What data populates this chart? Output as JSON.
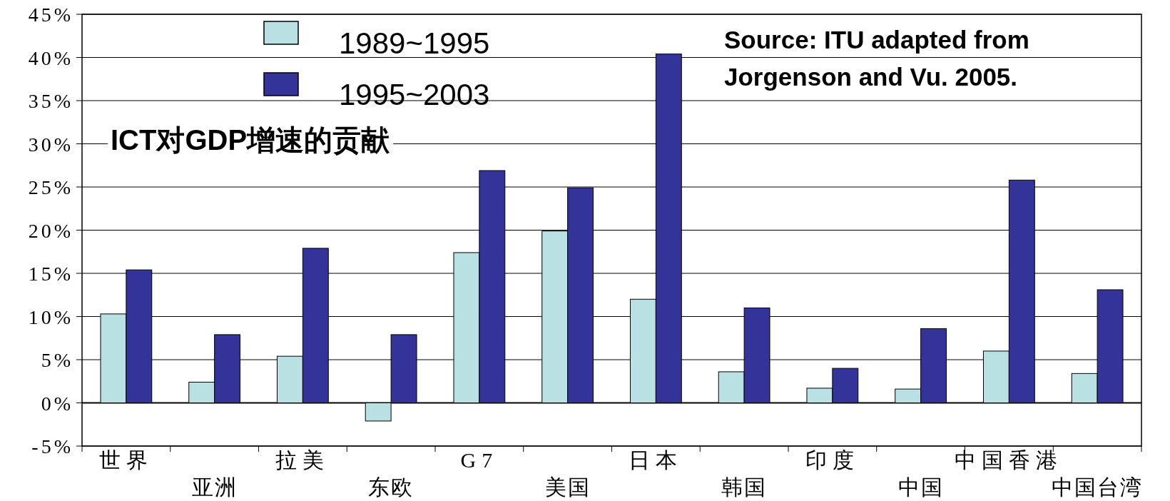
{
  "chart_data": {
    "type": "bar",
    "title": "ICT对GDP增速的贡献",
    "categories": [
      "世界",
      "亚洲",
      "拉美",
      "东欧",
      "G7",
      "美国",
      "日本",
      "韩国",
      "印度",
      "中国",
      "中国香港",
      "中国台湾"
    ],
    "series": [
      {
        "name": "1989~1995",
        "color": "#b9e0e3",
        "values": [
          10.3,
          2.4,
          5.4,
          -2.1,
          17.4,
          19.9,
          12.0,
          3.6,
          1.7,
          1.6,
          6.0,
          3.4
        ]
      },
      {
        "name": "1995~2003",
        "color": "#333399",
        "values": [
          15.4,
          7.9,
          17.9,
          7.9,
          26.9,
          24.9,
          40.4,
          11.0,
          4.0,
          8.6,
          25.8,
          13.1
        ]
      }
    ],
    "ylim": [
      -5,
      45
    ],
    "yticks": [
      {
        "value": -5,
        "label": "-5%"
      },
      {
        "value": 0,
        "label": "0%"
      },
      {
        "value": 5,
        "label": "5%"
      },
      {
        "value": 10,
        "label": "10%"
      },
      {
        "value": 15,
        "label": "15%"
      },
      {
        "value": 20,
        "label": "20%"
      },
      {
        "value": 25,
        "label": "25%"
      },
      {
        "value": 30,
        "label": "30%"
      },
      {
        "value": 35,
        "label": "35%"
      },
      {
        "value": 40,
        "label": "40%"
      },
      {
        "value": 45,
        "label": "45%"
      }
    ],
    "grid": "y",
    "legend": "top",
    "annotations": [
      "Source: ITU adapted from Jorgenson and Vu. 2005."
    ]
  }
}
